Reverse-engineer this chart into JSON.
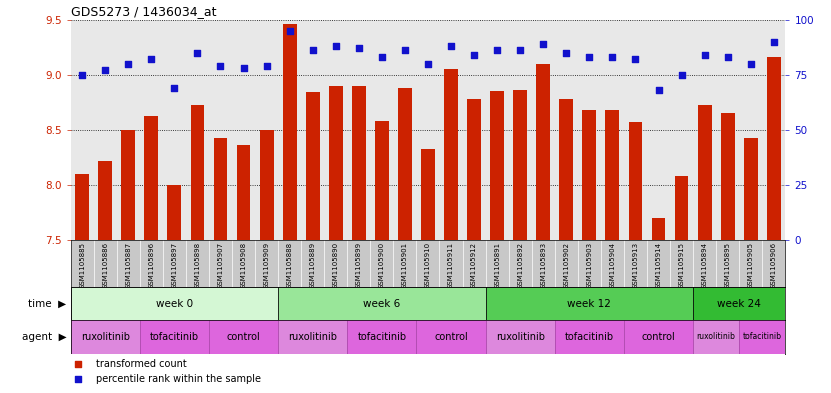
{
  "title": "GDS5273 / 1436034_at",
  "samples": [
    "GSM1105885",
    "GSM1105886",
    "GSM1105887",
    "GSM1105896",
    "GSM1105897",
    "GSM1105898",
    "GSM1105907",
    "GSM1105908",
    "GSM1105909",
    "GSM1105888",
    "GSM1105889",
    "GSM1105890",
    "GSM1105899",
    "GSM1105900",
    "GSM1105901",
    "GSM1105910",
    "GSM1105911",
    "GSM1105912",
    "GSM1105891",
    "GSM1105892",
    "GSM1105893",
    "GSM1105902",
    "GSM1105903",
    "GSM1105904",
    "GSM1105913",
    "GSM1105914",
    "GSM1105915",
    "GSM1105894",
    "GSM1105895",
    "GSM1105905",
    "GSM1105906"
  ],
  "bar_values": [
    8.1,
    8.22,
    8.5,
    8.62,
    8.0,
    8.72,
    8.42,
    8.36,
    8.5,
    9.46,
    8.84,
    8.9,
    8.9,
    8.58,
    8.88,
    8.32,
    9.05,
    8.78,
    8.85,
    8.86,
    9.1,
    8.78,
    8.68,
    8.68,
    8.57,
    7.7,
    8.08,
    8.72,
    8.65,
    8.42,
    9.16
  ],
  "percentile_values": [
    75,
    77,
    80,
    82,
    69,
    85,
    79,
    78,
    79,
    95,
    86,
    88,
    87,
    83,
    86,
    80,
    88,
    84,
    86,
    86,
    89,
    85,
    83,
    83,
    82,
    68,
    75,
    84,
    83,
    80,
    90
  ],
  "bar_color": "#cc2200",
  "percentile_color": "#1111cc",
  "ylim_left": [
    7.5,
    9.5
  ],
  "ylim_right": [
    0,
    100
  ],
  "yticks_left": [
    7.5,
    8.0,
    8.5,
    9.0,
    9.5
  ],
  "yticks_right": [
    0,
    25,
    50,
    75,
    100
  ],
  "plot_bg_color": "#e8e8e8",
  "xtick_bg_color": "#c8c8c8",
  "time_row": [
    {
      "label": "week 0",
      "start": 0,
      "end": 9,
      "color": "#d4f7d4"
    },
    {
      "label": "week 6",
      "start": 9,
      "end": 18,
      "color": "#99e699"
    },
    {
      "label": "week 12",
      "start": 18,
      "end": 27,
      "color": "#55cc55"
    },
    {
      "label": "week 24",
      "start": 27,
      "end": 31,
      "color": "#33bb33"
    }
  ],
  "agent_row": [
    {
      "label": "ruxolitinib",
      "start": 0,
      "end": 3,
      "color": "#dd88dd"
    },
    {
      "label": "tofacitinib",
      "start": 3,
      "end": 6,
      "color": "#dd66dd"
    },
    {
      "label": "control",
      "start": 6,
      "end": 9,
      "color": "#dd66dd"
    },
    {
      "label": "ruxolitinib",
      "start": 9,
      "end": 12,
      "color": "#dd88dd"
    },
    {
      "label": "tofacitinib",
      "start": 12,
      "end": 15,
      "color": "#dd66dd"
    },
    {
      "label": "control",
      "start": 15,
      "end": 18,
      "color": "#dd66dd"
    },
    {
      "label": "ruxolitinib",
      "start": 18,
      "end": 21,
      "color": "#dd88dd"
    },
    {
      "label": "tofacitinib",
      "start": 21,
      "end": 24,
      "color": "#dd66dd"
    },
    {
      "label": "control",
      "start": 24,
      "end": 27,
      "color": "#dd66dd"
    },
    {
      "label": "ruxolitinib",
      "start": 27,
      "end": 29,
      "color": "#dd88dd"
    },
    {
      "label": "tofacitinib",
      "start": 29,
      "end": 31,
      "color": "#dd66dd"
    }
  ]
}
